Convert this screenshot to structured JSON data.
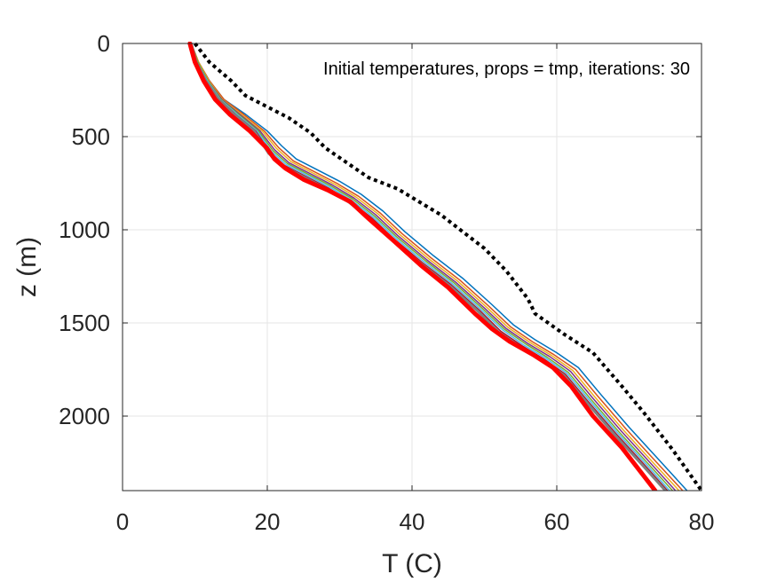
{
  "chart_data": {
    "type": "line",
    "title": "",
    "annotation": "Initial temperatures, props = tmp, iterations: 30",
    "xlabel": "T (C)",
    "ylabel": "z (m)",
    "xlim": [
      0,
      80
    ],
    "ylim": [
      0,
      2400
    ],
    "y_reversed": true,
    "grid": true,
    "xticks": [
      0,
      20,
      40,
      60,
      80
    ],
    "yticks": [
      0,
      500,
      1000,
      1500,
      2000
    ],
    "xtick_labels": [
      "0",
      "20",
      "40",
      "60",
      "80"
    ],
    "ytick_labels": [
      "0",
      "500",
      "1000",
      "1500",
      "2000"
    ],
    "series": [
      {
        "color": "#000000",
        "style": "dotted",
        "width": 4,
        "points": [
          [
            10,
            0
          ],
          [
            12,
            100
          ],
          [
            15,
            200
          ],
          [
            17,
            280
          ],
          [
            20,
            340
          ],
          [
            23,
            400
          ],
          [
            26,
            480
          ],
          [
            28,
            560
          ],
          [
            31,
            640
          ],
          [
            34,
            720
          ],
          [
            38,
            780
          ],
          [
            41,
            850
          ],
          [
            44,
            920
          ],
          [
            47,
            1010
          ],
          [
            50,
            1100
          ],
          [
            53,
            1220
          ],
          [
            56,
            1370
          ],
          [
            57,
            1450
          ],
          [
            61,
            1560
          ],
          [
            65,
            1660
          ],
          [
            67,
            1750
          ],
          [
            69,
            1840
          ],
          [
            72,
            1980
          ],
          [
            76,
            2180
          ],
          [
            80,
            2400
          ]
        ]
      },
      {
        "color": "#0072bd",
        "style": "solid",
        "width": 1.5,
        "points": [
          [
            9.5,
            0
          ],
          [
            10.5,
            100
          ],
          [
            12,
            200
          ],
          [
            14,
            300
          ],
          [
            17,
            380
          ],
          [
            20,
            470
          ],
          [
            22,
            550
          ],
          [
            24,
            620
          ],
          [
            27,
            680
          ],
          [
            30,
            740
          ],
          [
            33,
            810
          ],
          [
            36,
            900
          ],
          [
            39,
            1010
          ],
          [
            43,
            1140
          ],
          [
            47,
            1260
          ],
          [
            51,
            1400
          ],
          [
            54,
            1510
          ],
          [
            57,
            1590
          ],
          [
            60,
            1660
          ],
          [
            63,
            1740
          ],
          [
            66,
            1880
          ],
          [
            70,
            2060
          ],
          [
            74,
            2230
          ],
          [
            78,
            2400
          ]
        ]
      },
      {
        "color": "#d95319",
        "style": "solid",
        "width": 1.5,
        "points": [
          [
            9.5,
            0
          ],
          [
            10.5,
            100
          ],
          [
            12,
            200
          ],
          [
            14,
            300
          ],
          [
            16.7,
            380
          ],
          [
            19.6,
            470
          ],
          [
            21.6,
            560
          ],
          [
            23.6,
            630
          ],
          [
            26.6,
            690
          ],
          [
            29.6,
            750
          ],
          [
            32.6,
            820
          ],
          [
            35.6,
            910
          ],
          [
            38.6,
            1020
          ],
          [
            42.6,
            1150
          ],
          [
            46.6,
            1270
          ],
          [
            50.6,
            1410
          ],
          [
            53.6,
            1520
          ],
          [
            56.6,
            1600
          ],
          [
            59.6,
            1670
          ],
          [
            62.6,
            1750
          ],
          [
            65.6,
            1890
          ],
          [
            69.6,
            2070
          ],
          [
            73.6,
            2240
          ],
          [
            77.4,
            2400
          ]
        ]
      },
      {
        "color": "#edb120",
        "style": "solid",
        "width": 1.5,
        "points": [
          [
            9.5,
            0
          ],
          [
            10.5,
            100
          ],
          [
            11.9,
            200
          ],
          [
            13.8,
            300
          ],
          [
            16.4,
            380
          ],
          [
            19.3,
            470
          ],
          [
            21.3,
            565
          ],
          [
            23.3,
            635
          ],
          [
            26.3,
            695
          ],
          [
            29.3,
            755
          ],
          [
            32.3,
            825
          ],
          [
            35.3,
            915
          ],
          [
            38.3,
            1025
          ],
          [
            42.3,
            1155
          ],
          [
            46.3,
            1275
          ],
          [
            50.3,
            1415
          ],
          [
            53.3,
            1525
          ],
          [
            56.3,
            1605
          ],
          [
            59.3,
            1675
          ],
          [
            62.2,
            1755
          ],
          [
            65.2,
            1895
          ],
          [
            69.2,
            2075
          ],
          [
            73.2,
            2245
          ],
          [
            76.9,
            2400
          ]
        ]
      },
      {
        "color": "#7e2f8e",
        "style": "solid",
        "width": 1.5,
        "points": [
          [
            9.5,
            0
          ],
          [
            10.4,
            100
          ],
          [
            11.8,
            200
          ],
          [
            13.7,
            300
          ],
          [
            16.2,
            380
          ],
          [
            19.0,
            470
          ],
          [
            21.0,
            570
          ],
          [
            23.0,
            640
          ],
          [
            26.0,
            700
          ],
          [
            29.0,
            760
          ],
          [
            32.0,
            830
          ],
          [
            35.0,
            920
          ],
          [
            38.0,
            1030
          ],
          [
            42.0,
            1160
          ],
          [
            46.0,
            1280
          ],
          [
            50.0,
            1420
          ],
          [
            53.0,
            1530
          ],
          [
            56.0,
            1610
          ],
          [
            59.0,
            1680
          ],
          [
            61.9,
            1760
          ],
          [
            64.9,
            1900
          ],
          [
            68.9,
            2080
          ],
          [
            72.9,
            2250
          ],
          [
            76.4,
            2400
          ]
        ]
      },
      {
        "color": "#77ac30",
        "style": "solid",
        "width": 1.5,
        "points": [
          [
            9.5,
            0
          ],
          [
            10.4,
            100
          ],
          [
            11.8,
            200
          ],
          [
            13.6,
            300
          ],
          [
            16.0,
            380
          ],
          [
            18.8,
            470
          ],
          [
            20.8,
            575
          ],
          [
            22.8,
            645
          ],
          [
            25.8,
            705
          ],
          [
            28.8,
            765
          ],
          [
            31.8,
            835
          ],
          [
            34.8,
            925
          ],
          [
            37.8,
            1035
          ],
          [
            41.8,
            1165
          ],
          [
            45.8,
            1285
          ],
          [
            49.8,
            1425
          ],
          [
            52.8,
            1535
          ],
          [
            55.8,
            1615
          ],
          [
            58.7,
            1685
          ],
          [
            61.6,
            1765
          ],
          [
            64.6,
            1905
          ],
          [
            68.6,
            2085
          ],
          [
            72.6,
            2255
          ],
          [
            76.0,
            2400
          ]
        ]
      },
      {
        "color": "#4dbeee",
        "style": "solid",
        "width": 1.5,
        "points": [
          [
            9.5,
            0
          ],
          [
            10.3,
            100
          ],
          [
            11.7,
            200
          ],
          [
            13.5,
            300
          ],
          [
            15.8,
            380
          ],
          [
            18.6,
            470
          ],
          [
            20.6,
            580
          ],
          [
            22.6,
            650
          ],
          [
            25.6,
            710
          ],
          [
            28.6,
            770
          ],
          [
            31.6,
            840
          ],
          [
            34.6,
            930
          ],
          [
            37.6,
            1040
          ],
          [
            41.6,
            1170
          ],
          [
            45.6,
            1290
          ],
          [
            49.6,
            1430
          ],
          [
            52.6,
            1540
          ],
          [
            55.5,
            1620
          ],
          [
            58.5,
            1690
          ],
          [
            61.4,
            1770
          ],
          [
            64.4,
            1910
          ],
          [
            68.4,
            2090
          ],
          [
            72.4,
            2260
          ],
          [
            75.6,
            2400
          ]
        ]
      },
      {
        "color": "#a2142f",
        "style": "solid",
        "width": 1.5,
        "points": [
          [
            9.5,
            0
          ],
          [
            10.3,
            100
          ],
          [
            11.6,
            200
          ],
          [
            13.4,
            300
          ],
          [
            15.6,
            380
          ],
          [
            18.4,
            470
          ],
          [
            20.4,
            585
          ],
          [
            22.4,
            655
          ],
          [
            25.4,
            715
          ],
          [
            28.4,
            775
          ],
          [
            31.4,
            845
          ],
          [
            34.4,
            935
          ],
          [
            37.4,
            1045
          ],
          [
            41.4,
            1175
          ],
          [
            45.4,
            1295
          ],
          [
            49.4,
            1435
          ],
          [
            52.3,
            1545
          ],
          [
            55.3,
            1625
          ],
          [
            58.3,
            1695
          ],
          [
            61.2,
            1775
          ],
          [
            64.2,
            1915
          ],
          [
            68.2,
            2095
          ],
          [
            72.2,
            2265
          ],
          [
            75.3,
            2400
          ]
        ]
      },
      {
        "color": "#7f7f7f",
        "style": "solid",
        "width": 3,
        "points": [
          [
            9.5,
            0
          ],
          [
            10.2,
            100
          ],
          [
            11.5,
            200
          ],
          [
            13.3,
            300
          ],
          [
            15.4,
            380
          ],
          [
            18.2,
            470
          ],
          [
            20.2,
            590
          ],
          [
            22.2,
            660
          ],
          [
            25.2,
            720
          ],
          [
            28.2,
            780
          ],
          [
            31.2,
            850
          ],
          [
            34.2,
            940
          ],
          [
            37.2,
            1050
          ],
          [
            41.2,
            1180
          ],
          [
            45.2,
            1300
          ],
          [
            49.2,
            1440
          ],
          [
            52.0,
            1550
          ],
          [
            55.0,
            1630
          ],
          [
            58.0,
            1700
          ],
          [
            61.0,
            1780
          ],
          [
            64.0,
            1920
          ],
          [
            68.0,
            2100
          ],
          [
            72.0,
            2270
          ],
          [
            75.0,
            2400
          ]
        ]
      },
      {
        "color": "#ff0000",
        "style": "solid",
        "width": 5,
        "points": [
          [
            9.3,
            0
          ],
          [
            10.0,
            100
          ],
          [
            11.2,
            200
          ],
          [
            12.8,
            300
          ],
          [
            14.8,
            380
          ],
          [
            17.6,
            470
          ],
          [
            19.9,
            560
          ],
          [
            21.0,
            620
          ],
          [
            22.5,
            670
          ],
          [
            25.0,
            730
          ],
          [
            28.5,
            790
          ],
          [
            31.5,
            850
          ],
          [
            34.0,
            940
          ],
          [
            37.5,
            1060
          ],
          [
            41.2,
            1190
          ],
          [
            45.0,
            1310
          ],
          [
            48.7,
            1450
          ],
          [
            51.0,
            1530
          ],
          [
            53.5,
            1600
          ],
          [
            56.7,
            1670
          ],
          [
            59.5,
            1740
          ],
          [
            62.0,
            1840
          ],
          [
            65.0,
            2000
          ],
          [
            69.0,
            2170
          ],
          [
            73.6,
            2400
          ]
        ]
      }
    ]
  }
}
